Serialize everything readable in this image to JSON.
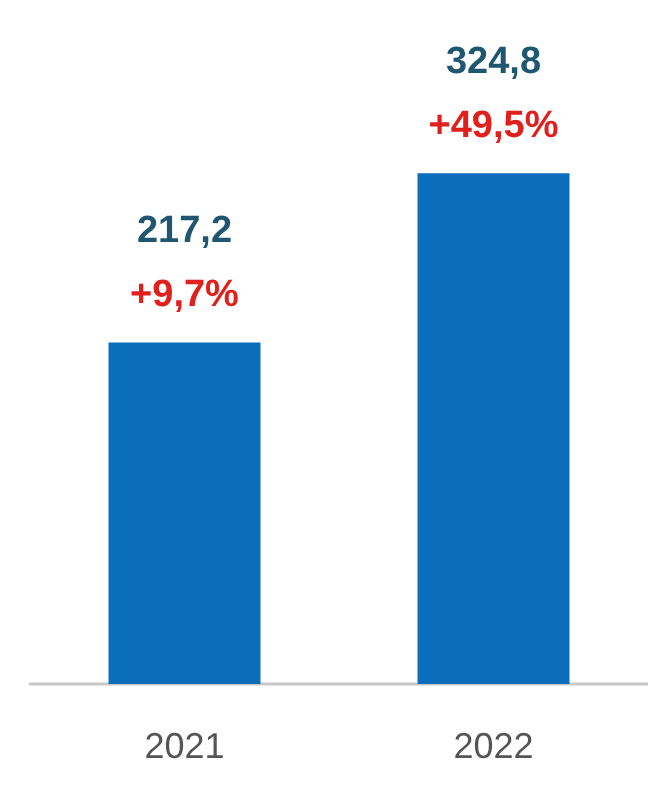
{
  "chart_data": {
    "type": "bar",
    "categories": [
      "2021",
      "2022"
    ],
    "values": [
      217.2,
      324.8
    ],
    "color": "#0a6ebd",
    "value_labels": [
      "217,2",
      "324,8"
    ],
    "annotations": [
      {
        "text": "+9,7%",
        "x": "2021",
        "y": 217.2
      },
      {
        "text": "+49,5%",
        "x": "2022",
        "y": 324.8
      }
    ]
  }
}
